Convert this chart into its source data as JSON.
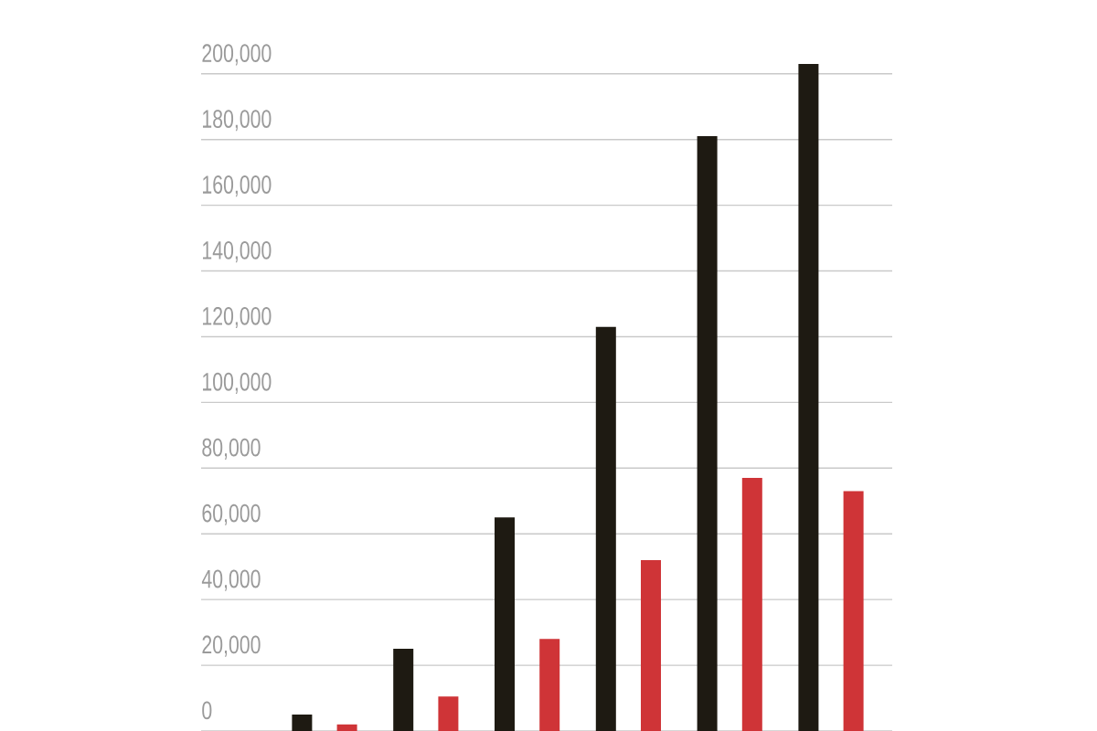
{
  "chart_data": {
    "type": "bar",
    "categories": [
      null,
      null,
      null,
      null,
      null,
      null
    ],
    "series": [
      {
        "color": "#1e1a12",
        "values": [
          5000,
          25000,
          65000,
          123000,
          181000,
          203000
        ]
      },
      {
        "color": "#cf3437",
        "values": [
          2000,
          10500,
          28000,
          52000,
          77000,
          73000
        ]
      }
    ],
    "ylim": [
      0,
      203000
    ],
    "yticks": [
      {
        "value": 0,
        "label": "0"
      },
      {
        "value": 20000,
        "label": "20,000"
      },
      {
        "value": 40000,
        "label": "40,000"
      },
      {
        "value": 60000,
        "label": "60,000"
      },
      {
        "value": 80000,
        "label": "80,000"
      },
      {
        "value": 100000,
        "label": "100,000"
      },
      {
        "value": 120000,
        "label": "120,000"
      },
      {
        "value": 140000,
        "label": "140,000"
      },
      {
        "value": 160000,
        "label": "160,000"
      },
      {
        "value": 180000,
        "label": "180,000"
      },
      {
        "value": 200000,
        "label": "200,000"
      }
    ],
    "grid": "y",
    "tick_labels": "y"
  }
}
